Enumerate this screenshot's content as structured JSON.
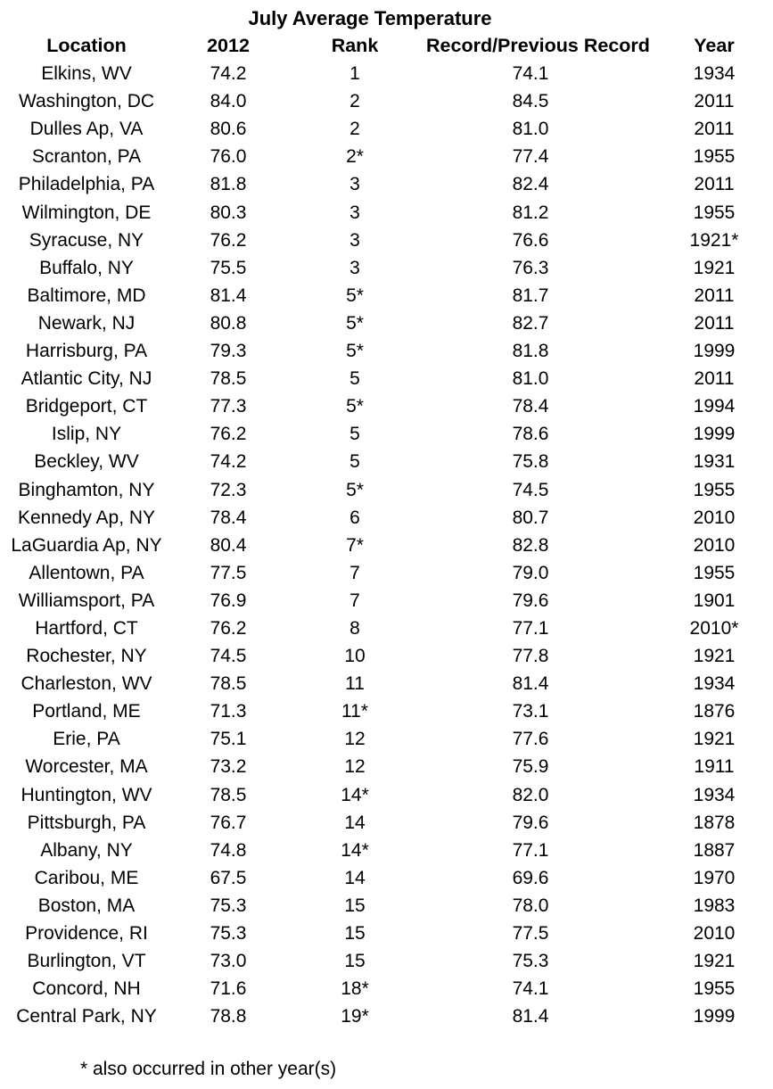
{
  "chart_data": {
    "type": "table",
    "title": "July Average Temperature",
    "columns": [
      "Location",
      "2012",
      "Rank",
      "Record/Previous Record",
      "Year"
    ],
    "rows": [
      [
        "Elkins, WV",
        "74.2",
        "1",
        "74.1",
        "1934"
      ],
      [
        "Washington, DC",
        "84.0",
        "2",
        "84.5",
        "2011"
      ],
      [
        "Dulles Ap, VA",
        "80.6",
        "2",
        "81.0",
        "2011"
      ],
      [
        "Scranton, PA",
        "76.0",
        "2*",
        "77.4",
        "1955"
      ],
      [
        "Philadelphia, PA",
        "81.8",
        "3",
        "82.4",
        "2011"
      ],
      [
        "Wilmington, DE",
        "80.3",
        "3",
        "81.2",
        "1955"
      ],
      [
        "Syracuse, NY",
        "76.2",
        "3",
        "76.6",
        "1921*"
      ],
      [
        "Buffalo, NY",
        "75.5",
        "3",
        "76.3",
        "1921"
      ],
      [
        "Baltimore, MD",
        "81.4",
        "5*",
        "81.7",
        "2011"
      ],
      [
        "Newark, NJ",
        "80.8",
        "5*",
        "82.7",
        "2011"
      ],
      [
        "Harrisburg, PA",
        "79.3",
        "5*",
        "81.8",
        "1999"
      ],
      [
        "Atlantic City, NJ",
        "78.5",
        "5",
        "81.0",
        "2011"
      ],
      [
        "Bridgeport, CT",
        "77.3",
        "5*",
        "78.4",
        "1994"
      ],
      [
        "Islip, NY",
        "76.2",
        "5",
        "78.6",
        "1999"
      ],
      [
        "Beckley, WV",
        "74.2",
        "5",
        "75.8",
        "1931"
      ],
      [
        "Binghamton, NY",
        "72.3",
        "5*",
        "74.5",
        "1955"
      ],
      [
        "Kennedy Ap, NY",
        "78.4",
        "6",
        "80.7",
        "2010"
      ],
      [
        "LaGuardia Ap, NY",
        "80.4",
        "7*",
        "82.8",
        "2010"
      ],
      [
        "Allentown, PA",
        "77.5",
        "7",
        "79.0",
        "1955"
      ],
      [
        "Williamsport, PA",
        "76.9",
        "7",
        "79.6",
        "1901"
      ],
      [
        "Hartford, CT",
        "76.2",
        "8",
        "77.1",
        "2010*"
      ],
      [
        "Rochester, NY",
        "74.5",
        "10",
        "77.8",
        "1921"
      ],
      [
        "Charleston, WV",
        "78.5",
        "11",
        "81.4",
        "1934"
      ],
      [
        "Portland, ME",
        "71.3",
        "11*",
        "73.1",
        "1876"
      ],
      [
        "Erie, PA",
        "75.1",
        "12",
        "77.6",
        "1921"
      ],
      [
        "Worcester, MA",
        "73.2",
        "12",
        "75.9",
        "1911"
      ],
      [
        "Huntington, WV",
        "78.5",
        "14*",
        "82.0",
        "1934"
      ],
      [
        "Pittsburgh, PA",
        "76.7",
        "14",
        "79.6",
        "1878"
      ],
      [
        "Albany, NY",
        "74.8",
        "14*",
        "77.1",
        "1887"
      ],
      [
        "Caribou, ME",
        "67.5",
        "14",
        "69.6",
        "1970"
      ],
      [
        "Boston, MA",
        "75.3",
        "15",
        "78.0",
        "1983"
      ],
      [
        "Providence, RI",
        "75.3",
        "15",
        "77.5",
        "2010"
      ],
      [
        "Burlington, VT",
        "73.0",
        "15",
        "75.3",
        "1921"
      ],
      [
        "Concord, NH",
        "71.6",
        "18*",
        "74.1",
        "1955"
      ],
      [
        "Central Park, NY",
        "78.8",
        "19*",
        "81.4",
        "1999"
      ]
    ],
    "footnote": "* also occurred in other year(s)",
    "layout": {
      "grid": false,
      "column_alignment": "center",
      "header_bold": true,
      "title_bold": true
    },
    "colors": {
      "text": "#000000",
      "background": "#ffffff"
    }
  }
}
